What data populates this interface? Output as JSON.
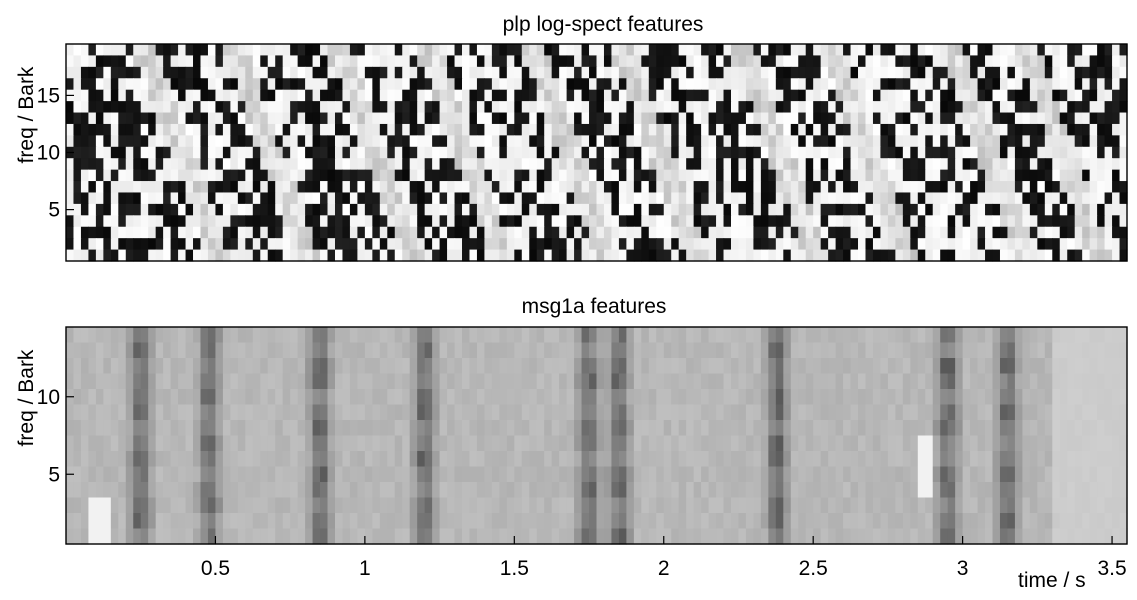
{
  "chart_data": [
    {
      "type": "heatmap",
      "title": "plp log-spect features",
      "ylabel": "freq / Bark",
      "xlabel": "",
      "xlim": [
        0,
        3.55
      ],
      "ylim": [
        0.5,
        19.5
      ],
      "yticks": [
        5,
        10,
        15
      ],
      "xticks": [],
      "colormap": "gray",
      "rows": 19,
      "cols": 142,
      "pattern": "binary dark/light texture crossed by bright diagonal streaks descending from upper-left to lower-right"
    },
    {
      "type": "heatmap",
      "title": "msg1a features",
      "ylabel": "freq / Bark",
      "xlabel": "time / s",
      "xlim": [
        0,
        3.55
      ],
      "ylim": [
        0.5,
        14.5
      ],
      "yticks": [
        5,
        10
      ],
      "xticks": [
        0.5,
        1,
        1.5,
        2,
        2.5,
        3,
        3.5
      ],
      "colormap": "gray",
      "rows": 14,
      "cols": 142,
      "pattern": "mid-gray field with dark vertical bands near t = 0.25, 0.48, 0.85, 1.2, 1.75, 1.85, 2.38 and 2.95 s; bright flash near t = 0.12 s and 2.9 s at low frequency"
    }
  ]
}
